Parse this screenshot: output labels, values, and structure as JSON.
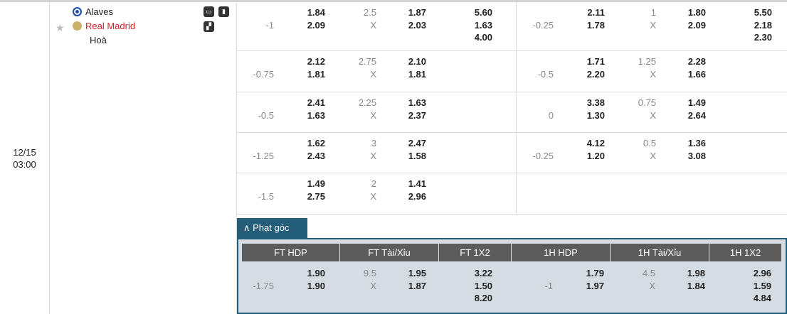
{
  "match": {
    "date": "12/15",
    "time": "03:00",
    "home": "Alaves",
    "away": "Real Madrid",
    "draw": "Hoà",
    "home_color": "#1f4fa8",
    "away_color": "#d61f26"
  },
  "icons": [
    "tv-icon",
    "stats-icon",
    "lineup-icon",
    "star-icon"
  ],
  "rows": [
    {
      "l": {
        "hdp": "-1",
        "h1": "1.84",
        "h2": "2.09",
        "ou": "2.5",
        "o1": "1.87",
        "o2": "2.03",
        "x": [
          "5.60",
          "1.63",
          "4.00"
        ]
      },
      "r": {
        "hdp": "-0.25",
        "h1": "2.11",
        "h2": "1.78",
        "ou": "1",
        "o1": "1.80",
        "o2": "2.09",
        "x": [
          "5.50",
          "2.18",
          "2.30"
        ]
      }
    },
    {
      "l": {
        "hdp": "-0.75",
        "h1": "2.12",
        "h2": "1.81",
        "ou": "2.75",
        "o1": "2.10",
        "o2": "1.81"
      },
      "r": {
        "hdp": "-0.5",
        "h1": "1.71",
        "h2": "2.20",
        "ou": "1.25",
        "o1": "2.28",
        "o2": "1.66"
      }
    },
    {
      "l": {
        "hdp": "-0.5",
        "h1": "2.41",
        "h2": "1.63",
        "ou": "2.25",
        "o1": "1.63",
        "o2": "2.37"
      },
      "r": {
        "hdp": "0",
        "h1": "3.38",
        "h2": "1.30",
        "ou": "0.75",
        "o1": "1.49",
        "o2": "2.64"
      }
    },
    {
      "l": {
        "hdp": "-1.25",
        "h1": "1.62",
        "h2": "2.43",
        "ou": "3",
        "o1": "2.47",
        "o2": "1.58"
      },
      "r": {
        "hdp": "-0.25",
        "h1": "4.12",
        "h2": "1.20",
        "ou": "0.5",
        "o1": "1.36",
        "o2": "3.08"
      }
    },
    {
      "l": {
        "hdp": "-1.5",
        "h1": "1.49",
        "h2": "2.75",
        "ou": "2",
        "o1": "1.41",
        "o2": "2.96"
      },
      "r": null
    }
  ],
  "x_label": "X",
  "corner": {
    "tab_label": "Phạt góc",
    "headers": [
      "FT HDP",
      "FT Tài/Xỉu",
      "FT 1X2",
      "1H HDP",
      "1H Tài/Xỉu",
      "1H 1X2"
    ],
    "l": {
      "hdp": "-1.75",
      "h1": "1.90",
      "h2": "1.90",
      "ou": "9.5",
      "o1": "1.95",
      "o2": "1.87",
      "x": [
        "3.22",
        "1.50",
        "8.20"
      ]
    },
    "r": {
      "hdp": "-1",
      "h1": "1.79",
      "h2": "1.97",
      "ou": "4.5",
      "o1": "1.98",
      "o2": "1.84",
      "x": [
        "2.96",
        "1.59",
        "4.84"
      ]
    }
  }
}
